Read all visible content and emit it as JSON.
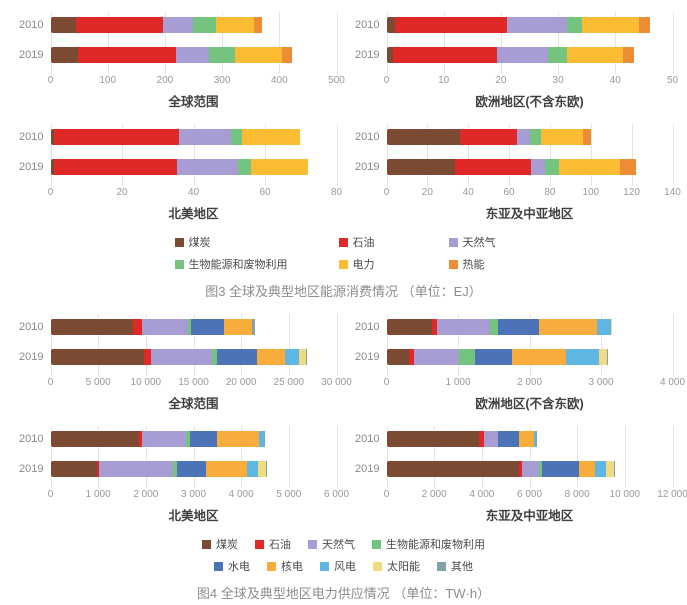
{
  "figure3": {
    "caption": "图3 全球及典型地区能源消费情况 （单位：EJ）",
    "unit": "EJ",
    "legend_rows": [
      [
        {
          "label": "煤炭",
          "color": "#7B4A33"
        },
        {
          "label": "石油",
          "color": "#E02826"
        },
        {
          "label": "天然气",
          "color": "#A79CD4"
        }
      ],
      [
        {
          "label": "生物能源和废物利用",
          "color": "#74C37F"
        },
        {
          "label": "电力",
          "color": "#FBBB33"
        },
        {
          "label": "热能",
          "color": "#EE8C35"
        }
      ]
    ]
  },
  "figure4": {
    "caption": "图4 全球及典型地区电力供应情况 （单位：TW·h）",
    "unit": "TW·h",
    "legend_rows": [
      [
        {
          "label": "煤炭",
          "color": "#7B4A33"
        },
        {
          "label": "石油",
          "color": "#E02826"
        },
        {
          "label": "天然气",
          "color": "#A79CD4"
        },
        {
          "label": "生物能源和废物利用",
          "color": "#74C37F"
        }
      ],
      [
        {
          "label": "水电",
          "color": "#4C72B8"
        },
        {
          "label": "核电",
          "color": "#F7AC3C"
        },
        {
          "label": "风电",
          "color": "#5FB6E3"
        },
        {
          "label": "太阳能",
          "color": "#EFDC82"
        },
        {
          "label": "其他",
          "color": "#82A3A8"
        }
      ]
    ]
  },
  "chart_data": [
    {
      "figure": 3,
      "type": "bar",
      "stacked": true,
      "orientation": "horizontal",
      "title": "全球范围",
      "categories": [
        "2010",
        "2019"
      ],
      "xlim": [
        0,
        500
      ],
      "xticks": [
        0,
        100,
        200,
        300,
        400,
        500
      ],
      "xtick_labels": [
        "0",
        "100",
        "200",
        "300",
        "400",
        "500"
      ],
      "series": [
        {
          "name": "煤炭",
          "color": "#7B4A33",
          "values": [
            45,
            48
          ]
        },
        {
          "name": "石油",
          "color": "#E02826",
          "values": [
            151,
            171
          ]
        },
        {
          "name": "天然气",
          "color": "#A79CD4",
          "values": [
            54,
            58
          ]
        },
        {
          "name": "生物能源和废物利用",
          "color": "#74C37F",
          "values": [
            39,
            45
          ]
        },
        {
          "name": "电力",
          "color": "#FBBB33",
          "values": [
            66,
            83
          ]
        },
        {
          "name": "热能",
          "color": "#EE8C35",
          "values": [
            15,
            17
          ]
        }
      ]
    },
    {
      "figure": 3,
      "type": "bar",
      "stacked": true,
      "orientation": "horizontal",
      "title": "欧洲地区(不含东欧)",
      "categories": [
        "2010",
        "2019"
      ],
      "xlim": [
        0,
        50
      ],
      "xticks": [
        0,
        10,
        20,
        30,
        40,
        50
      ],
      "xtick_labels": [
        "0",
        "10",
        "20",
        "30",
        "40",
        "50"
      ],
      "series": [
        {
          "name": "煤炭",
          "color": "#7B4A33",
          "values": [
            1.4,
            1.1
          ]
        },
        {
          "name": "石油",
          "color": "#E02826",
          "values": [
            19.6,
            18.2
          ]
        },
        {
          "name": "天然气",
          "color": "#A79CD4",
          "values": [
            10.6,
            9.0
          ]
        },
        {
          "name": "生物能源和废物利用",
          "color": "#74C37F",
          "values": [
            2.6,
            3.3
          ]
        },
        {
          "name": "电力",
          "color": "#FBBB33",
          "values": [
            10.0,
            9.8
          ]
        },
        {
          "name": "热能",
          "color": "#EE8C35",
          "values": [
            1.9,
            1.9
          ]
        }
      ]
    },
    {
      "figure": 3,
      "type": "bar",
      "stacked": true,
      "orientation": "horizontal",
      "title": "北美地区",
      "categories": [
        "2010",
        "2019"
      ],
      "xlim": [
        0,
        80
      ],
      "xticks": [
        0,
        20,
        40,
        60,
        80
      ],
      "xtick_labels": [
        "0",
        "20",
        "40",
        "60",
        "80"
      ],
      "series": [
        {
          "name": "煤炭",
          "color": "#7B4A33",
          "values": [
            1.0,
            1.0
          ]
        },
        {
          "name": "石油",
          "color": "#E02826",
          "values": [
            35.0,
            34.5
          ]
        },
        {
          "name": "天然气",
          "color": "#A79CD4",
          "values": [
            14.4,
            16.9
          ]
        },
        {
          "name": "生物能源和废物利用",
          "color": "#74C37F",
          "values": [
            3.2,
            3.7
          ]
        },
        {
          "name": "电力",
          "color": "#FBBB33",
          "values": [
            16.1,
            15.8
          ]
        },
        {
          "name": "热能",
          "color": "#EE8C35",
          "values": [
            0,
            0
          ]
        }
      ]
    },
    {
      "figure": 3,
      "type": "bar",
      "stacked": true,
      "orientation": "horizontal",
      "title": "东亚及中亚地区",
      "categories": [
        "2010",
        "2019"
      ],
      "xlim": [
        0,
        140
      ],
      "xticks": [
        0,
        20,
        40,
        60,
        80,
        100,
        120,
        140
      ],
      "xtick_labels": [
        "0",
        "20",
        "40",
        "60",
        "80",
        "100",
        "120",
        "140"
      ],
      "series": [
        {
          "name": "煤炭",
          "color": "#7B4A33",
          "values": [
            36.0,
            33.4
          ]
        },
        {
          "name": "石油",
          "color": "#E02826",
          "values": [
            28.0,
            37.2
          ]
        },
        {
          "name": "天然气",
          "color": "#A79CD4",
          "values": [
            6.3,
            6.8
          ]
        },
        {
          "name": "生物能源和废物利用",
          "color": "#74C37F",
          "values": [
            5.5,
            7.0
          ]
        },
        {
          "name": "电力",
          "color": "#FBBB33",
          "values": [
            20.2,
            29.9
          ]
        },
        {
          "name": "热能",
          "color": "#EE8C35",
          "values": [
            4.0,
            7.7
          ]
        }
      ]
    },
    {
      "figure": 4,
      "type": "bar",
      "stacked": true,
      "orientation": "horizontal",
      "title": "全球范围",
      "categories": [
        "2010",
        "2019"
      ],
      "xlim": [
        0,
        30000
      ],
      "xticks": [
        0,
        5000,
        10000,
        15000,
        20000,
        25000,
        30000
      ],
      "xtick_labels": [
        "0",
        "5 000",
        "10 000",
        "15 000",
        "20 000",
        "25 000",
        "30 000"
      ],
      "series": [
        {
          "name": "煤炭",
          "color": "#7B4A33",
          "values": [
            8620,
            9820
          ]
        },
        {
          "name": "石油",
          "color": "#E02826",
          "values": [
            1010,
            720
          ]
        },
        {
          "name": "天然气",
          "color": "#A79CD4",
          "values": [
            4810,
            6440
          ]
        },
        {
          "name": "生物能源和废物利用",
          "color": "#74C37F",
          "values": [
            250,
            440
          ]
        },
        {
          "name": "水电",
          "color": "#4C72B8",
          "values": [
            3490,
            4290
          ]
        },
        {
          "name": "核电",
          "color": "#F7AC3C",
          "values": [
            2980,
            2910
          ]
        },
        {
          "name": "风电",
          "color": "#5FB6E3",
          "values": [
            0,
            1450
          ]
        },
        {
          "name": "太阳能",
          "color": "#EFDC82",
          "values": [
            0,
            730
          ]
        },
        {
          "name": "其他",
          "color": "#82A3A8",
          "values": [
            290,
            100
          ]
        }
      ]
    },
    {
      "figure": 4,
      "type": "bar",
      "stacked": true,
      "orientation": "horizontal",
      "title": "欧洲地区(不含东欧)",
      "categories": [
        "2010",
        "2019"
      ],
      "xlim": [
        0,
        4000
      ],
      "xticks": [
        0,
        1000,
        2000,
        3000,
        4000
      ],
      "xtick_labels": [
        "0",
        "1 000",
        "2 000",
        "3 000",
        "4 000"
      ],
      "series": [
        {
          "name": "煤炭",
          "color": "#7B4A33",
          "values": [
            630,
            310
          ]
        },
        {
          "name": "石油",
          "color": "#E02826",
          "values": [
            75,
            70
          ]
        },
        {
          "name": "天然气",
          "color": "#A79CD4",
          "values": [
            740,
            630
          ]
        },
        {
          "name": "生物能源和废物利用",
          "color": "#74C37F",
          "values": [
            110,
            230
          ]
        },
        {
          "name": "水电",
          "color": "#4C72B8",
          "values": [
            575,
            510
          ]
        },
        {
          "name": "核电",
          "color": "#F7AC3C",
          "values": [
            810,
            760
          ]
        },
        {
          "name": "风电",
          "color": "#5FB6E3",
          "values": [
            200,
            460
          ]
        },
        {
          "name": "太阳能",
          "color": "#EFDC82",
          "values": [
            20,
            110
          ]
        },
        {
          "name": "其他",
          "color": "#82A3A8",
          "values": [
            0,
            20
          ]
        }
      ]
    },
    {
      "figure": 4,
      "type": "bar",
      "stacked": true,
      "orientation": "horizontal",
      "title": "北美地区",
      "categories": [
        "2010",
        "2019"
      ],
      "xlim": [
        0,
        6000
      ],
      "xticks": [
        0,
        1000,
        2000,
        3000,
        4000,
        5000,
        6000
      ],
      "xtick_labels": [
        "0",
        "1 000",
        "2 000",
        "3 000",
        "4 000",
        "5 000",
        "6 000"
      ],
      "series": [
        {
          "name": "煤炭",
          "color": "#7B4A33",
          "values": [
            1850,
            980
          ]
        },
        {
          "name": "石油",
          "color": "#E02826",
          "values": [
            70,
            35
          ]
        },
        {
          "name": "天然气",
          "color": "#A79CD4",
          "values": [
            925,
            1560
          ]
        },
        {
          "name": "生物能源和废物利用",
          "color": "#74C37F",
          "values": [
            80,
            70
          ]
        },
        {
          "name": "水电",
          "color": "#4C72B8",
          "values": [
            560,
            610
          ]
        },
        {
          "name": "核电",
          "color": "#F7AC3C",
          "values": [
            885,
            860
          ]
        },
        {
          "name": "风电",
          "color": "#5FB6E3",
          "values": [
            100,
            245
          ]
        },
        {
          "name": "太阳能",
          "color": "#EFDC82",
          "values": [
            0,
            155
          ]
        },
        {
          "name": "其他",
          "color": "#82A3A8",
          "values": [
            30,
            25
          ]
        }
      ]
    },
    {
      "figure": 4,
      "type": "bar",
      "stacked": true,
      "orientation": "horizontal",
      "title": "东亚及中亚地区",
      "categories": [
        "2010",
        "2019"
      ],
      "xlim": [
        0,
        12000
      ],
      "xticks": [
        0,
        2000,
        4000,
        6000,
        8000,
        10000,
        12000
      ],
      "xtick_labels": [
        "0",
        "2 000",
        "4 000",
        "6 000",
        "8 000",
        "10 000",
        "12 000"
      ],
      "series": [
        {
          "name": "煤炭",
          "color": "#7B4A33",
          "values": [
            3870,
            5580
          ]
        },
        {
          "name": "石油",
          "color": "#E02826",
          "values": [
            230,
            120
          ]
        },
        {
          "name": "天然气",
          "color": "#A79CD4",
          "values": [
            570,
            690
          ]
        },
        {
          "name": "生物能源和废物利用",
          "color": "#74C37F",
          "values": [
            30,
            150
          ]
        },
        {
          "name": "水电",
          "color": "#4C72B8",
          "values": [
            850,
            1540
          ]
        },
        {
          "name": "核电",
          "color": "#F7AC3C",
          "values": [
            650,
            690
          ]
        },
        {
          "name": "风电",
          "color": "#5FB6E3",
          "values": [
            60,
            455
          ]
        },
        {
          "name": "太阳能",
          "color": "#EFDC82",
          "values": [
            0,
            310
          ]
        },
        {
          "name": "其他",
          "color": "#82A3A8",
          "values": [
            20,
            25
          ]
        }
      ]
    }
  ]
}
